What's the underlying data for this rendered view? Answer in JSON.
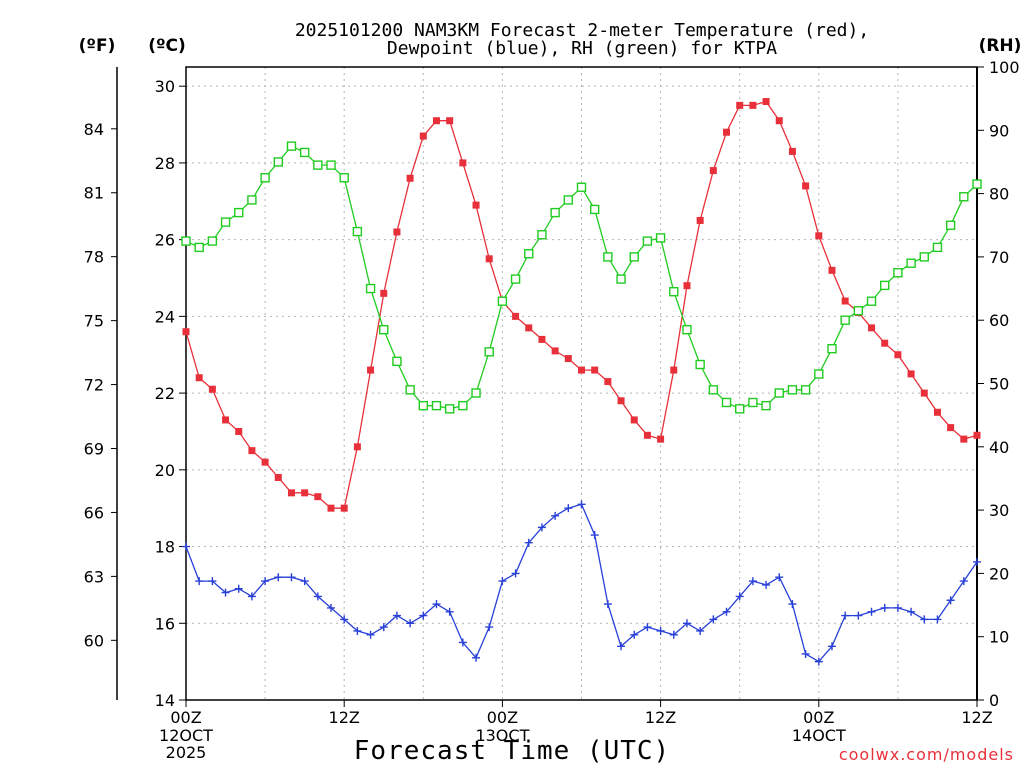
{
  "chart_data": {
    "type": "line",
    "title_line1": "2025101200 NAM3KM Forecast 2-meter Temperature (red),",
    "title_line2": "Dewpoint (blue), RH (green) for KTPA",
    "xlabel": "Forecast Time (UTC)",
    "credit": "coolwx.com/models",
    "units": {
      "fahrenheit": "(ºF)",
      "celsius": "(ºC)",
      "rh": "(RH)"
    },
    "x_range_hours": [
      0,
      60
    ],
    "celsius_range": [
      14,
      30.5
    ],
    "rh_range": [
      0,
      100
    ],
    "celsius_ticks": [
      "14",
      "16",
      "18",
      "20",
      "22",
      "24",
      "26",
      "28",
      "30"
    ],
    "fahrenheit_ticks": [
      "60",
      "63",
      "66",
      "69",
      "72",
      "75",
      "78",
      "81",
      "84"
    ],
    "rh_ticks": [
      "0",
      "10",
      "20",
      "30",
      "40",
      "50",
      "60",
      "70",
      "80",
      "90",
      "100"
    ],
    "x_ticks": [
      {
        "hour": 0,
        "line1": "00Z",
        "line2": "12OCT",
        "line3": "2025"
      },
      {
        "hour": 12,
        "line1": "12Z",
        "line2": "",
        "line3": ""
      },
      {
        "hour": 24,
        "line1": "00Z",
        "line2": "13OCT",
        "line3": ""
      },
      {
        "hour": 36,
        "line1": "12Z",
        "line2": "",
        "line3": ""
      },
      {
        "hour": 48,
        "line1": "00Z",
        "line2": "14OCT",
        "line3": ""
      },
      {
        "hour": 60,
        "line1": "12Z",
        "line2": "",
        "line3": ""
      }
    ],
    "hours": [
      0,
      1,
      2,
      3,
      4,
      5,
      6,
      7,
      8,
      9,
      10,
      11,
      12,
      13,
      14,
      15,
      16,
      17,
      18,
      19,
      20,
      21,
      22,
      23,
      24,
      25,
      26,
      27,
      28,
      29,
      30,
      31,
      32,
      33,
      34,
      35,
      36,
      37,
      38,
      39,
      40,
      41,
      42,
      43,
      44,
      45,
      46,
      47,
      48,
      49,
      50,
      51,
      52,
      53,
      54,
      55,
      56,
      57,
      58,
      59,
      60
    ],
    "series": [
      {
        "name": "2-meter Temperature",
        "axis": "celsius",
        "color": "#e8303a",
        "marker": "filled-square",
        "values": [
          23.6,
          22.4,
          22.1,
          21.3,
          21.0,
          20.5,
          20.2,
          19.8,
          19.4,
          19.4,
          19.3,
          19.0,
          19.0,
          20.6,
          22.6,
          24.6,
          26.2,
          27.6,
          28.7,
          29.1,
          29.1,
          28.0,
          26.9,
          25.5,
          24.4,
          24.0,
          23.7,
          23.4,
          23.1,
          22.9,
          22.6,
          22.6,
          22.3,
          21.8,
          21.3,
          20.9,
          20.8,
          22.6,
          24.8,
          26.5,
          27.8,
          28.8,
          29.5,
          29.5,
          29.6,
          29.1,
          28.3,
          27.4,
          26.1,
          25.2,
          24.4,
          24.1,
          23.7,
          23.3,
          23.0,
          22.5,
          22.0,
          21.5,
          21.1,
          20.8,
          20.9
        ]
      },
      {
        "name": "Dewpoint",
        "axis": "celsius",
        "color": "#2840d8",
        "marker": "plus",
        "values": [
          18.0,
          17.1,
          17.1,
          16.8,
          16.9,
          16.7,
          17.1,
          17.2,
          17.2,
          17.1,
          16.7,
          16.4,
          16.1,
          15.8,
          15.7,
          15.9,
          16.2,
          16.0,
          16.2,
          16.5,
          16.3,
          15.5,
          15.1,
          15.9,
          17.1,
          17.3,
          18.1,
          18.5,
          18.8,
          19.0,
          19.1,
          18.3,
          16.5,
          15.4,
          15.7,
          15.9,
          15.8,
          15.7,
          16.0,
          15.8,
          16.1,
          16.3,
          16.7,
          17.1,
          17.0,
          17.2,
          16.5,
          15.2,
          15.0,
          15.4,
          16.2,
          16.2,
          16.3,
          16.4,
          16.4,
          16.3,
          16.1,
          16.1,
          16.6,
          17.1,
          17.6
        ]
      },
      {
        "name": "RH",
        "axis": "rh",
        "color": "#20cc20",
        "marker": "open-square",
        "values": [
          72.5,
          71.5,
          72.5,
          75.5,
          77.0,
          79.0,
          82.5,
          85.0,
          87.5,
          86.5,
          84.5,
          84.5,
          82.5,
          74.0,
          65.0,
          58.5,
          53.5,
          49.0,
          46.5,
          46.5,
          46.0,
          46.5,
          48.5,
          55.0,
          63.0,
          66.5,
          70.5,
          73.5,
          77.0,
          79.0,
          81.0,
          77.5,
          70.0,
          66.5,
          70.0,
          72.5,
          73.0,
          64.5,
          58.5,
          53.0,
          49.0,
          47.0,
          46.0,
          47.0,
          46.5,
          48.5,
          49.0,
          49.0,
          51.5,
          55.5,
          60.0,
          61.5,
          63.0,
          65.5,
          67.5,
          69.0,
          70.0,
          71.5,
          75.0,
          79.5,
          81.5
        ]
      }
    ]
  }
}
